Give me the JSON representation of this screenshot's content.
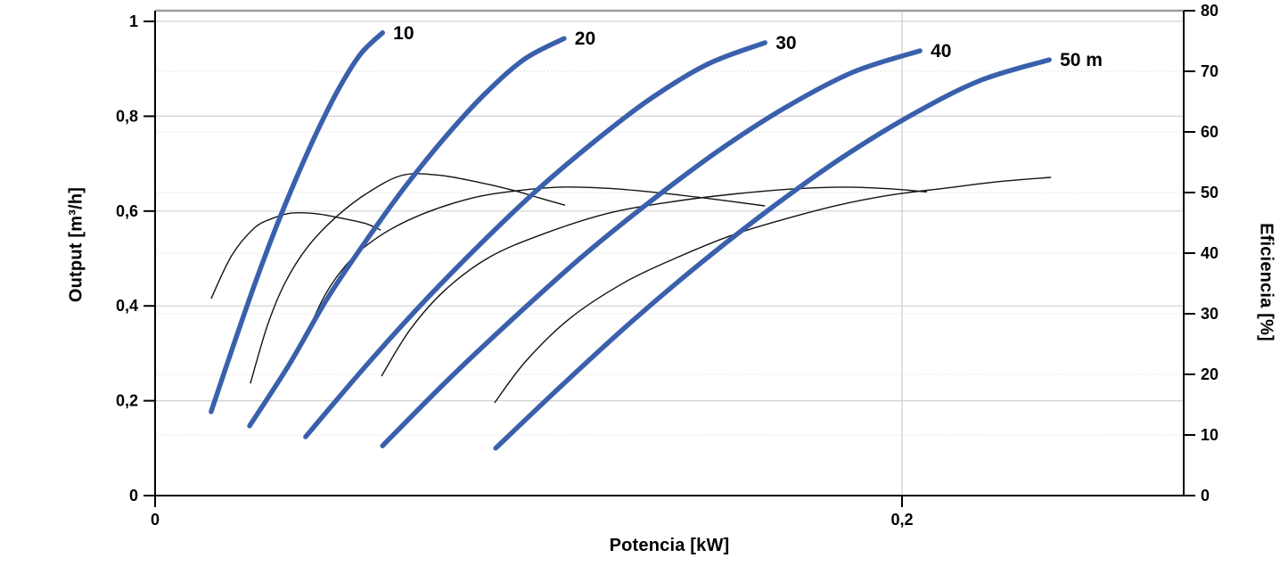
{
  "chart_data": {
    "type": "line",
    "title": "",
    "xlabel": "Potencia [kW]",
    "ylabel_left": "Output [m³/h]",
    "ylabel_right": "Eficiencia [%]",
    "legend_position": "none",
    "grid": {
      "horizontal_major": true,
      "horizontal_minor_dotted": true,
      "vertical_at": [
        0.2
      ]
    },
    "x_axis": {
      "min": 0,
      "max": 0.2754,
      "ticks": [
        {
          "v": 0,
          "label": "0"
        },
        {
          "v": 0.2,
          "label": "0,2"
        }
      ]
    },
    "y_left_axis": {
      "min": 0,
      "max": 1.0226,
      "ticks": [
        {
          "v": 0,
          "label": "0"
        },
        {
          "v": 0.2,
          "label": "0,2"
        },
        {
          "v": 0.4,
          "label": "0,4"
        },
        {
          "v": 0.6,
          "label": "0,6"
        },
        {
          "v": 0.8,
          "label": "0,8"
        },
        {
          "v": 1,
          "label": "1"
        }
      ],
      "gridline_values": [
        0.2,
        0.4,
        0.6,
        0.8,
        1.0
      ]
    },
    "y_right_axis": {
      "min": 0,
      "max": 80,
      "ticks": [
        {
          "v": 0,
          "label": "0"
        },
        {
          "v": 10,
          "label": "10"
        },
        {
          "v": 20,
          "label": "20"
        },
        {
          "v": 30,
          "label": "30"
        },
        {
          "v": 40,
          "label": "40"
        },
        {
          "v": 50,
          "label": "50"
        },
        {
          "v": 60,
          "label": "60"
        },
        {
          "v": 70,
          "label": "70"
        },
        {
          "v": 80,
          "label": "80"
        }
      ],
      "minor_gridline_values": [
        10,
        20,
        30,
        40,
        50,
        60,
        70
      ]
    },
    "pump_curves": [
      {
        "name": "10",
        "label": "10",
        "head_m": 10,
        "points": [
          [
            0.015,
            0.177
          ],
          [
            0.0208,
            0.313
          ],
          [
            0.0265,
            0.442
          ],
          [
            0.0322,
            0.562
          ],
          [
            0.038,
            0.673
          ],
          [
            0.0437,
            0.773
          ],
          [
            0.0494,
            0.861
          ],
          [
            0.0551,
            0.932
          ],
          [
            0.0609,
            0.976
          ]
        ]
      },
      {
        "name": "20",
        "label": "20",
        "head_m": 20,
        "points": [
          [
            0.0253,
            0.147
          ],
          [
            0.0358,
            0.275
          ],
          [
            0.0463,
            0.418
          ],
          [
            0.0568,
            0.541
          ],
          [
            0.0673,
            0.655
          ],
          [
            0.0778,
            0.757
          ],
          [
            0.0883,
            0.847
          ],
          [
            0.0988,
            0.92
          ],
          [
            0.1095,
            0.964
          ]
        ]
      },
      {
        "name": "30",
        "label": "30",
        "head_m": 30,
        "points": [
          [
            0.0403,
            0.124
          ],
          [
            0.0556,
            0.266
          ],
          [
            0.0709,
            0.4
          ],
          [
            0.0864,
            0.525
          ],
          [
            0.1017,
            0.64
          ],
          [
            0.1172,
            0.744
          ],
          [
            0.1325,
            0.836
          ],
          [
            0.148,
            0.91
          ],
          [
            0.1633,
            0.955
          ]
        ]
      },
      {
        "name": "40",
        "label": "40",
        "head_m": 40,
        "points": [
          [
            0.0609,
            0.105
          ],
          [
            0.0788,
            0.247
          ],
          [
            0.0969,
            0.381
          ],
          [
            0.1148,
            0.507
          ],
          [
            0.1329,
            0.622
          ],
          [
            0.1508,
            0.727
          ],
          [
            0.1687,
            0.818
          ],
          [
            0.1869,
            0.893
          ],
          [
            0.2048,
            0.938
          ]
        ]
      },
      {
        "name": "50",
        "label": "50 m",
        "head_m": 50,
        "points": [
          [
            0.0912,
            0.1
          ],
          [
            0.1098,
            0.239
          ],
          [
            0.1282,
            0.371
          ],
          [
            0.1468,
            0.495
          ],
          [
            0.1654,
            0.609
          ],
          [
            0.1838,
            0.712
          ],
          [
            0.2024,
            0.802
          ],
          [
            0.2208,
            0.875
          ],
          [
            0.2394,
            0.919
          ]
        ]
      }
    ],
    "efficiency_curves": [
      {
        "name": "10",
        "points": [
          [
            0.015,
            32.5
          ],
          [
            0.0205,
            39.6
          ],
          [
            0.0265,
            44.1
          ],
          [
            0.0313,
            45.7
          ],
          [
            0.0365,
            46.6
          ],
          [
            0.0432,
            46.5
          ],
          [
            0.0504,
            45.7
          ],
          [
            0.0563,
            44.9
          ],
          [
            0.0604,
            43.8
          ]
        ]
      },
      {
        "name": "20",
        "points": [
          [
            0.0255,
            18.5
          ],
          [
            0.0301,
            28.1
          ],
          [
            0.0348,
            35.1
          ],
          [
            0.0408,
            41.0
          ],
          [
            0.048,
            45.7
          ],
          [
            0.0563,
            49.7
          ],
          [
            0.0659,
            52.8
          ],
          [
            0.0754,
            52.9
          ],
          [
            0.085,
            51.9
          ],
          [
            0.0957,
            50.4
          ],
          [
            0.1029,
            49.1
          ],
          [
            0.1098,
            47.9
          ]
        ]
      },
      {
        "name": "30",
        "points": [
          [
            0.0399,
            25.6
          ],
          [
            0.0456,
            33.2
          ],
          [
            0.0527,
            39.1
          ],
          [
            0.0611,
            43.2
          ],
          [
            0.0718,
            46.5
          ],
          [
            0.085,
            49.1
          ],
          [
            0.0969,
            50.3
          ],
          [
            0.1088,
            50.9
          ],
          [
            0.1208,
            50.7
          ],
          [
            0.1327,
            50.1
          ],
          [
            0.147,
            49.1
          ],
          [
            0.1633,
            47.8
          ]
        ]
      },
      {
        "name": "40",
        "points": [
          [
            0.0606,
            19.7
          ],
          [
            0.0683,
            27.4
          ],
          [
            0.0778,
            34.0
          ],
          [
            0.0897,
            39.4
          ],
          [
            0.1041,
            43.2
          ],
          [
            0.1208,
            46.5
          ],
          [
            0.1375,
            48.4
          ],
          [
            0.1542,
            49.7
          ],
          [
            0.1709,
            50.6
          ],
          [
            0.1852,
            50.9
          ],
          [
            0.1971,
            50.6
          ],
          [
            0.2067,
            50.1
          ]
        ]
      },
      {
        "name": "50",
        "points": [
          [
            0.0909,
            15.3
          ],
          [
            0.0993,
            22.2
          ],
          [
            0.1112,
            29.3
          ],
          [
            0.1255,
            35.1
          ],
          [
            0.1391,
            39.1
          ],
          [
            0.1542,
            42.9
          ],
          [
            0.1685,
            45.6
          ],
          [
            0.1828,
            47.9
          ],
          [
            0.1971,
            49.6
          ],
          [
            0.2114,
            50.7
          ],
          [
            0.2258,
            51.8
          ],
          [
            0.2399,
            52.5
          ]
        ]
      }
    ]
  },
  "colors": {
    "pump_curve_blue": "#3A60AC",
    "efficiency_black": "#141414",
    "grid_major": "#D0D0D0",
    "grid_minor": "#DCDCDC",
    "grid_vertical": "#CFCFCF",
    "top_border": "#9E9E9E",
    "axis": "#000000",
    "text": "#000000"
  }
}
